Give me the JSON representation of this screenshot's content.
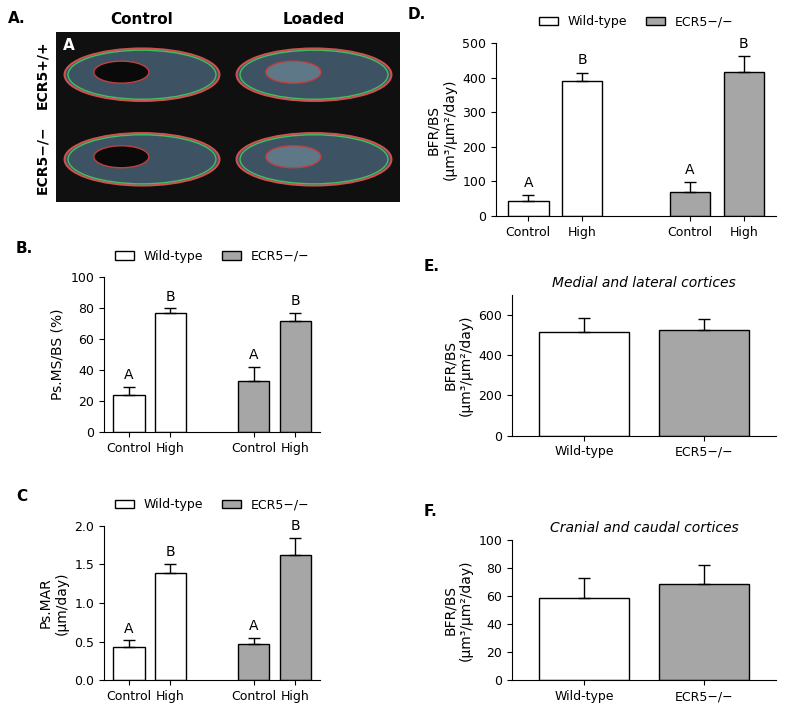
{
  "image_panel": {
    "panel": "A.",
    "inset_letter": "A",
    "columns": [
      "Control",
      "Loaded"
    ],
    "rows": [
      "ECR5+/+",
      "ECR5−/−"
    ]
  },
  "chart_data": [
    {
      "panel": "B.",
      "type": "bar",
      "categories": [
        "Control",
        "High",
        null,
        "Control",
        "High"
      ],
      "y_label": "Ps.MS/BS (%)",
      "ylim": [
        0,
        100
      ],
      "yticks": [
        0,
        20,
        40,
        60,
        80,
        100
      ],
      "legend": "top",
      "series": [
        {
          "name": "Wild-type",
          "color": "#ffffff",
          "values": [
            24,
            77,
            null,
            null,
            null
          ],
          "errors": [
            5,
            3,
            null,
            null,
            null
          ],
          "letters": [
            "A",
            "B",
            null,
            null,
            null
          ]
        },
        {
          "name": "ECR5−/−",
          "color": "#a6a6a6",
          "values": [
            null,
            null,
            null,
            33,
            72
          ],
          "errors": [
            null,
            null,
            null,
            9,
            5
          ],
          "letters": [
            null,
            null,
            null,
            "A",
            "B"
          ]
        }
      ]
    },
    {
      "panel": "C",
      "type": "bar",
      "categories": [
        "Control",
        "High",
        null,
        "Control",
        "High"
      ],
      "y_label": "Ps.MAR\n(µm/day)",
      "ylim": [
        0.0,
        2.0
      ],
      "yticks": [
        0.0,
        0.5,
        1.0,
        1.5,
        2.0
      ],
      "legend": "top",
      "series": [
        {
          "name": "Wild-type",
          "color": "#ffffff",
          "values": [
            0.43,
            1.39,
            null,
            null,
            null
          ],
          "errors": [
            0.09,
            0.12,
            null,
            null,
            null
          ],
          "letters": [
            "A",
            "B",
            null,
            null,
            null
          ]
        },
        {
          "name": "ECR5−/−",
          "color": "#a6a6a6",
          "values": [
            null,
            null,
            null,
            0.47,
            1.62
          ],
          "errors": [
            null,
            null,
            null,
            0.08,
            0.22
          ],
          "letters": [
            null,
            null,
            null,
            "A",
            "B"
          ]
        }
      ]
    },
    {
      "panel": "D.",
      "type": "bar",
      "categories": [
        "Control",
        "High",
        null,
        "Control",
        "High"
      ],
      "y_label": "BFR/BS\n(µm³/µm²/day)",
      "ylim": [
        0,
        500
      ],
      "yticks": [
        0,
        100,
        200,
        300,
        400,
        500
      ],
      "legend": "top",
      "series": [
        {
          "name": "Wild-type",
          "color": "#ffffff",
          "values": [
            42,
            390,
            null,
            null,
            null
          ],
          "errors": [
            18,
            25,
            null,
            null,
            null
          ],
          "letters": [
            "A",
            "B",
            null,
            null,
            null
          ]
        },
        {
          "name": "ECR5−/−",
          "color": "#a6a6a6",
          "values": [
            null,
            null,
            null,
            70,
            418
          ],
          "errors": [
            null,
            null,
            null,
            28,
            45
          ],
          "letters": [
            null,
            null,
            null,
            "A",
            "B"
          ]
        }
      ]
    },
    {
      "panel": "E.",
      "type": "bar",
      "title": "Medial and lateral cortices",
      "categories": [
        "Wild-type",
        "ECR5−/−"
      ],
      "values": [
        515,
        525
      ],
      "errors": [
        70,
        55
      ],
      "colors": [
        "#ffffff",
        "#a6a6a6"
      ],
      "y_label": "BFR/BS\n(µm³/µm²/day)",
      "ylim": [
        0,
        700
      ],
      "yticks": [
        0,
        200,
        400,
        600
      ]
    },
    {
      "panel": "F.",
      "type": "bar",
      "title": "Cranial and caudal cortices",
      "categories": [
        "Wild-type",
        "ECR5−/−"
      ],
      "values": [
        59,
        69
      ],
      "errors": [
        14,
        13
      ],
      "colors": [
        "#ffffff",
        "#a6a6a6"
      ],
      "y_label": "BFR/BS\n(µm³/µm²/day)",
      "ylim": [
        0,
        100
      ],
      "yticks": [
        0,
        20,
        40,
        60,
        80,
        100
      ]
    }
  ]
}
